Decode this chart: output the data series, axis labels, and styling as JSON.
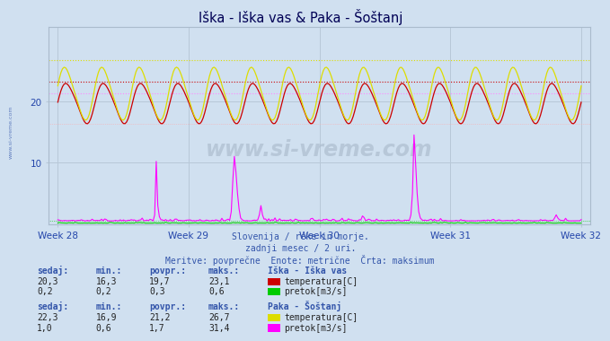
{
  "title": "Iška - Iška vas & Paka - Šoštanj",
  "background_color": "#d0e0f0",
  "plot_bg_color": "#d0e0f0",
  "xlim_weeks": [
    27.93,
    32.07
  ],
  "ylim": [
    0,
    32
  ],
  "yticks": [
    10,
    20
  ],
  "week_ticks": [
    28,
    29,
    30,
    31,
    32
  ],
  "week_labels": [
    "Week 28",
    "Week 29",
    "Week 30",
    "Week 31",
    "Week 32"
  ],
  "n_points": 336,
  "temp_iska_povpr": 19.7,
  "temp_iska_min": 16.3,
  "temp_iska_maks": 23.1,
  "flow_iska_povpr": 0.3,
  "flow_iska_maks": 0.6,
  "temp_paka_povpr": 21.2,
  "temp_paka_min": 16.9,
  "temp_paka_maks": 26.7,
  "flow_paka_maks": 31.4,
  "color_temp_iska": "#cc0000",
  "color_flow_iska": "#00cc00",
  "color_temp_paka": "#dddd00",
  "color_flow_paka": "#ff00ff",
  "color_grid": "#b8c8d8",
  "title_color": "#000055",
  "label_color": "#2244aa",
  "info_color": "#3355aa",
  "subtitle_lines": [
    "Slovenija / reke in morje.",
    "zadnji mesec / 2 uri.",
    "Meritve: povprečne  Enote: metrične  Črta: maksimum"
  ],
  "station1_name": "Iška - Iška vas",
  "station2_name": "Paka - Šoštanj",
  "legend1_colors": [
    "#cc0000",
    "#00cc00"
  ],
  "legend2_colors": [
    "#dddd00",
    "#ff00ff"
  ],
  "legend1_lines": [
    "temperatura[C]",
    "pretok[m3/s]"
  ],
  "legend2_lines": [
    "temperatura[C]",
    "pretok[m3/s]"
  ],
  "stat1_sedaj": [
    "20,3",
    "0,2"
  ],
  "stat1_min": [
    "16,3",
    "0,2"
  ],
  "stat1_povpr": [
    "19,7",
    "0,3"
  ],
  "stat1_maks": [
    "23,1",
    "0,6"
  ],
  "stat2_sedaj": [
    "22,3",
    "1,0"
  ],
  "stat2_min": [
    "16,9",
    "0,6"
  ],
  "stat2_povpr": [
    "21,2",
    "1,7"
  ],
  "stat2_maks": [
    "26,7",
    "31,4"
  ]
}
